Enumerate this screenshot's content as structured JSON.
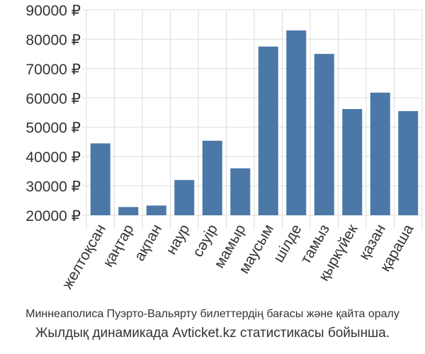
{
  "chart_data": {
    "type": "bar",
    "categories": [
      "желтоқсан",
      "қаңтар",
      "ақпан",
      "наур",
      "сәуір",
      "мамыр",
      "маусым",
      "шілде",
      "тамыз",
      "қыркүйек",
      "қазан",
      "қараша"
    ],
    "values": [
      44500,
      22800,
      23300,
      32000,
      45400,
      36000,
      77500,
      83000,
      75000,
      56200,
      61800,
      55500
    ],
    "y_ticks": [
      "20000 ₽",
      "30000 ₽",
      "40000 ₽",
      "50000 ₽",
      "60000 ₽",
      "70000 ₽",
      "80000 ₽",
      "90000 ₽"
    ],
    "ylim": [
      20000,
      90000
    ],
    "grid": true,
    "bar_color": "#4c78a8",
    "title": "",
    "xlabel": "",
    "ylabel": ""
  },
  "caption": {
    "line1": "Миннеаполиса Пуэрто-Вальярту билеттердің бағасы және қайта оралу",
    "line2": "Жылдық динамикада Avticket.kz статистикасы бойынша."
  }
}
